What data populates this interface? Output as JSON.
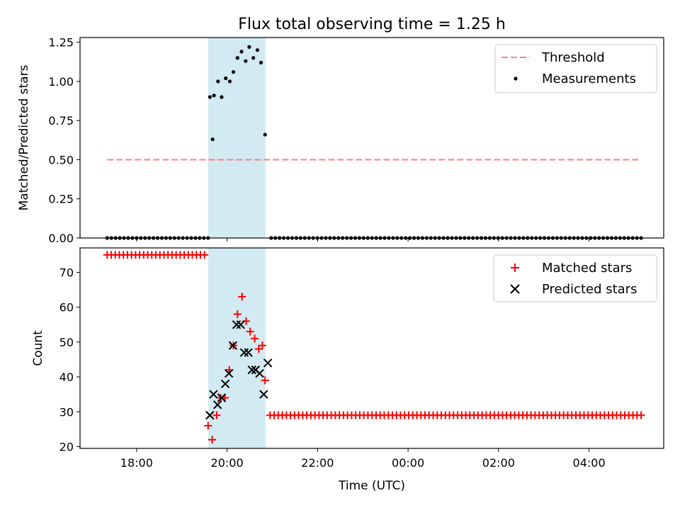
{
  "chart_data": {
    "type": "scatter",
    "title": "Flux total observing time = 1.25 h",
    "shared_xaxis": {
      "xlabel": "Time (UTC)",
      "unit": "hours since 00:00 (negative = previous day)",
      "xlim": [
        -7.25,
        5.65
      ],
      "ticks": [
        -6,
        -4,
        -2,
        0,
        2,
        4
      ],
      "tick_labels": [
        "18:00",
        "20:00",
        "22:00",
        "00:00",
        "02:00",
        "04:00"
      ]
    },
    "highlight_span": {
      "x_start": -4.42,
      "x_end": -3.15,
      "color": "#add8e6"
    },
    "panels": [
      {
        "ylabel": "Matched/Predicted stars",
        "ylim": [
          0,
          1.28
        ],
        "yticks": [
          0,
          0.25,
          0.5,
          0.75,
          1.0,
          1.25
        ],
        "ytick_labels": [
          "0.00",
          "0.25",
          "0.50",
          "0.75",
          "1.00",
          "1.25"
        ],
        "legend": {
          "position": "upper right",
          "entries": [
            "Threshold",
            "Measurements"
          ]
        },
        "series": [
          {
            "name": "Threshold",
            "kind": "dashed-line",
            "color": "#ff7f7f",
            "x": [
              -6.65,
              5.15
            ],
            "y": [
              0.5,
              0.5
            ]
          },
          {
            "name": "Measurements",
            "kind": "dots",
            "color": "#000000",
            "x": [
              -4.38,
              -4.29,
              -4.2,
              -4.12,
              -4.03,
              -3.94,
              -3.86,
              -3.77,
              -3.68,
              -3.59,
              -3.51,
              -3.42,
              -3.33,
              -3.25,
              -3.16,
              -4.32
            ],
            "y": [
              0.9,
              0.91,
              1.0,
              0.9,
              1.02,
              1.0,
              1.06,
              1.15,
              1.19,
              1.13,
              1.22,
              1.15,
              1.2,
              1.12,
              0.66,
              0.63
            ]
          },
          {
            "name": "Measurements (zero)",
            "kind": "dots",
            "color": "#000000",
            "range": [
              -6.65,
              5.15
            ],
            "gap": [
              -4.42,
              -3.1
            ],
            "count": 128,
            "value": 0
          }
        ]
      },
      {
        "ylabel": "Count",
        "ylim": [
          19.5,
          77
        ],
        "yticks": [
          20,
          30,
          40,
          50,
          60,
          70
        ],
        "ytick_labels": [
          "20",
          "30",
          "40",
          "50",
          "60",
          "70"
        ],
        "legend": {
          "position": "upper right",
          "entries": [
            "Matched stars",
            "Predicted stars"
          ]
        },
        "series": [
          {
            "name": "Matched stars",
            "kind": "plus",
            "color": "#ff0000",
            "x": [
              -4.42,
              -4.33,
              -4.23,
              -4.14,
              -4.05,
              -3.95,
              -3.86,
              -3.77,
              -3.67,
              -3.58,
              -3.49,
              -3.39,
              -3.3,
              -3.22,
              -3.16
            ],
            "y": [
              26,
              22,
              29,
              34,
              34,
              42,
              49,
              58,
              63,
              56,
              53,
              51,
              48,
              49,
              39
            ]
          },
          {
            "name": "Matched stars (flat, before)",
            "kind": "plus",
            "color": "#ff0000",
            "range": [
              -6.65,
              -4.5
            ],
            "count": 25,
            "value": 75
          },
          {
            "name": "Matched stars (flat, after)",
            "kind": "plus",
            "color": "#ff0000",
            "range": [
              -3.05,
              5.15
            ],
            "count": 92,
            "value": 29
          },
          {
            "name": "Predicted stars",
            "kind": "cross",
            "color": "#000000",
            "x": [
              -4.38,
              -4.3,
              -4.21,
              -4.12,
              -4.04,
              -3.96,
              -3.87,
              -3.79,
              -3.7,
              -3.62,
              -3.53,
              -3.45,
              -3.37,
              -3.28,
              -3.19,
              -3.1
            ],
            "y": [
              29,
              35,
              32,
              34,
              38,
              41,
              49,
              55,
              55,
              47,
              47,
              42,
              42,
              41,
              35,
              44
            ]
          }
        ]
      }
    ]
  }
}
